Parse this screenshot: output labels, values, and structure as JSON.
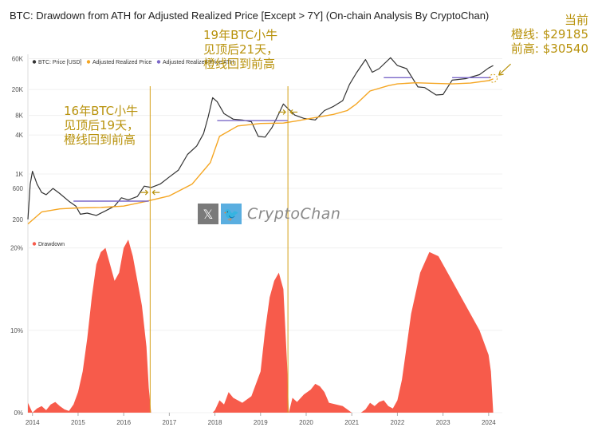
{
  "chart_data": [
    {
      "type": "line",
      "title": "BTC: Drawdown from ATH for Adjusted Realized Price [Except > 7Y] (On-chain Analysis By CryptoChan)",
      "yscale": "log",
      "ylim": [
        150,
        70000
      ],
      "xlim": [
        2013.9,
        2024.3
      ],
      "y_ticks": [
        "60K",
        "20K",
        "8K",
        "4K",
        "1K",
        "600",
        "200"
      ],
      "y_tick_values": [
        60000,
        20000,
        8000,
        4000,
        1000,
        600,
        200
      ],
      "legend": {
        "placement": "top-left",
        "items": [
          "BTC: Price [USD]",
          "Adjusted Realized Price",
          "Adjusted Realized Price ATH"
        ]
      },
      "series": [
        {
          "name": "BTC: Price [USD]",
          "color": "#333333",
          "x": [
            2013.9,
            2013.95,
            2014.0,
            2014.1,
            2014.2,
            2014.3,
            2014.45,
            2014.6,
            2014.8,
            2014.95,
            2015.05,
            2015.2,
            2015.4,
            2015.6,
            2015.8,
            2015.95,
            2016.1,
            2016.3,
            2016.45,
            2016.6,
            2016.8,
            2017.0,
            2017.2,
            2017.4,
            2017.6,
            2017.75,
            2017.85,
            2017.95,
            2018.05,
            2018.2,
            2018.4,
            2018.6,
            2018.8,
            2018.95,
            2019.1,
            2019.25,
            2019.4,
            2019.5,
            2019.6,
            2019.75,
            2019.95,
            2020.2,
            2020.4,
            2020.6,
            2020.8,
            2020.95,
            2021.1,
            2021.3,
            2021.45,
            2021.6,
            2021.85,
            2022.0,
            2022.2,
            2022.45,
            2022.6,
            2022.85,
            2023.0,
            2023.2,
            2023.5,
            2023.8,
            2024.0,
            2024.1
          ],
          "values": [
            200,
            700,
            1100,
            700,
            520,
            480,
            600,
            500,
            380,
            320,
            240,
            250,
            230,
            270,
            320,
            430,
            400,
            450,
            650,
            620,
            700,
            900,
            1150,
            2000,
            2700,
            4200,
            7500,
            15000,
            13000,
            8500,
            7000,
            6800,
            6400,
            3800,
            3700,
            5200,
            8500,
            12000,
            10200,
            8100,
            7200,
            6800,
            9500,
            11000,
            13500,
            24000,
            36000,
            58000,
            37000,
            42000,
            62000,
            47000,
            42000,
            22000,
            21500,
            16500,
            16800,
            28000,
            29500,
            34000,
            43000,
            47000
          ]
        },
        {
          "name": "Adjusted Realized Price",
          "color": "#f5a623",
          "x": [
            2013.9,
            2014.2,
            2014.6,
            2015.0,
            2015.5,
            2016.0,
            2016.5,
            2017.0,
            2017.5,
            2017.9,
            2018.1,
            2018.5,
            2019.0,
            2019.5,
            2019.8,
            2020.2,
            2020.6,
            2020.9,
            2021.1,
            2021.4,
            2021.8,
            2022.0,
            2022.4,
            2022.8,
            2023.2,
            2023.6,
            2024.0,
            2024.1
          ],
          "values": [
            170,
            260,
            290,
            300,
            305,
            320,
            380,
            460,
            700,
            1500,
            3800,
            5500,
            6000,
            6100,
            6600,
            7400,
            8300,
            9500,
            12000,
            19000,
            23000,
            24500,
            25500,
            25000,
            24500,
            25200,
            27500,
            29185
          ]
        },
        {
          "name": "Adjusted Realized Price ATH",
          "color": "#7b68c8",
          "x": [
            2014.9,
            2016.55,
            2018.05,
            2019.6,
            2021.7,
            2022.3,
            2023.2,
            2024.05
          ],
          "values": [
            382,
            382,
            6650,
            6650,
            30540,
            30540,
            30540,
            30540
          ]
        }
      ],
      "annotations": [
        {
          "text": [
            "16年BTC小牛",
            "见顶后19天，",
            "橙线回到前高"
          ]
        },
        {
          "text": [
            "19年BTC小牛",
            "见顶后21天，",
            "橙线回到前高"
          ]
        },
        {
          "text": [
            "当前",
            "橙线: $29185",
            "前高: $30540"
          ]
        }
      ]
    },
    {
      "type": "area",
      "name": "Drawdown",
      "color": "#f75b4b",
      "ylim": [
        0,
        22
      ],
      "y_ticks": [
        "20%",
        "10%",
        "0%"
      ],
      "y_tick_values": [
        20,
        10,
        0
      ],
      "x_ticks": [
        "2014",
        "2015",
        "2016",
        "2017",
        "2018",
        "2019",
        "2020",
        "2021",
        "2022",
        "2023",
        "2024"
      ],
      "x_tick_values": [
        2014,
        2015,
        2016,
        2017,
        2018,
        2019,
        2020,
        2021,
        2022,
        2023,
        2024
      ],
      "legend": {
        "placement": "top-left",
        "items": [
          "Drawdown"
        ]
      },
      "x": [
        2013.9,
        2014.0,
        2014.1,
        2014.2,
        2014.3,
        2014.4,
        2014.5,
        2014.6,
        2014.7,
        2014.8,
        2014.9,
        2015.0,
        2015.1,
        2015.2,
        2015.3,
        2015.4,
        2015.5,
        2015.6,
        2015.7,
        2015.8,
        2015.9,
        2016.0,
        2016.1,
        2016.2,
        2016.3,
        2016.4,
        2016.5,
        2016.55,
        2016.6,
        2017.0,
        2017.5,
        2017.95,
        2018.0,
        2018.1,
        2018.2,
        2018.3,
        2018.4,
        2018.6,
        2018.8,
        2019.0,
        2019.1,
        2019.2,
        2019.3,
        2019.4,
        2019.5,
        2019.58,
        2019.62,
        2019.7,
        2019.8,
        2019.95,
        2020.1,
        2020.2,
        2020.3,
        2020.4,
        2020.5,
        2020.8,
        2021.0,
        2021.2,
        2021.3,
        2021.4,
        2021.5,
        2021.6,
        2021.7,
        2021.8,
        2021.9,
        2022.0,
        2022.1,
        2022.2,
        2022.3,
        2022.5,
        2022.7,
        2022.9,
        2023.0,
        2023.2,
        2023.4,
        2023.6,
        2023.8,
        2024.0,
        2024.05,
        2024.1
      ],
      "values": [
        1.2,
        0,
        0.5,
        0.8,
        0.3,
        1.0,
        1.3,
        0.8,
        0.4,
        0.2,
        1.0,
        2.5,
        5,
        9,
        14,
        18,
        19.5,
        20,
        18,
        16,
        17,
        20,
        21,
        19,
        16,
        13,
        8,
        3,
        0,
        0,
        0,
        0,
        0.3,
        1.5,
        1.0,
        2.5,
        1.8,
        1.2,
        2.0,
        5,
        10,
        14,
        16,
        17,
        15,
        6,
        0,
        1.8,
        1.3,
        2.2,
        2.8,
        3.5,
        3.2,
        2.5,
        1.2,
        0.8,
        0,
        0,
        0.4,
        1.2,
        0.8,
        1.3,
        1.5,
        0.8,
        0.5,
        1.5,
        4,
        8,
        12,
        17,
        19.5,
        19,
        18,
        16,
        14,
        12,
        10,
        7,
        5,
        0
      ]
    }
  ],
  "watermark": {
    "text": "CryptoChan",
    "x_glyph": "𝕏",
    "bird_glyph": "🐦"
  }
}
